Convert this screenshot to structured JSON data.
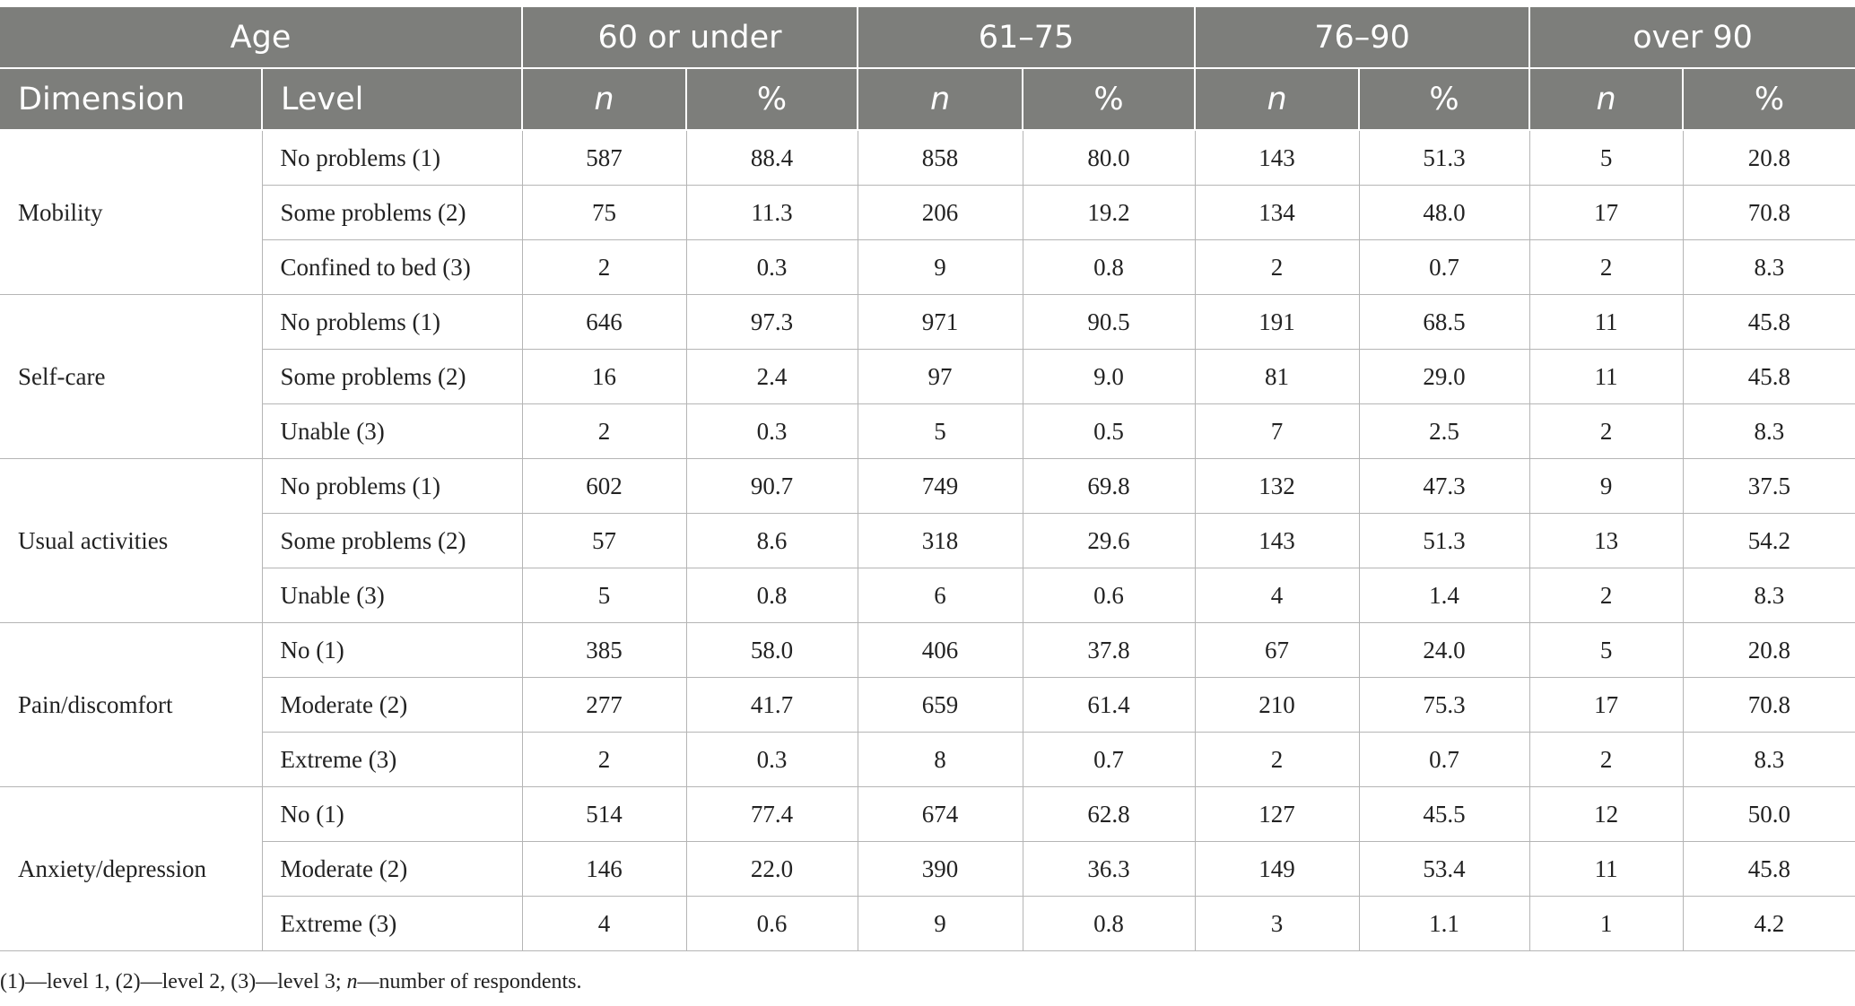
{
  "header": {
    "age_label": "Age",
    "groups": [
      "60 or under",
      "61–75",
      "76–90",
      "over 90"
    ],
    "dimension_label": "Dimension",
    "level_label": "Level",
    "n_label": "n",
    "pct_label": "%"
  },
  "rows": [
    {
      "dimension": "Mobility",
      "levels": [
        {
          "level": "No problems (1)",
          "values": [
            "587",
            "88.4",
            "858",
            "80.0",
            "143",
            "51.3",
            "5",
            "20.8"
          ]
        },
        {
          "level": "Some problems (2)",
          "values": [
            "75",
            "11.3",
            "206",
            "19.2",
            "134",
            "48.0",
            "17",
            "70.8"
          ]
        },
        {
          "level": "Confined to bed (3)",
          "values": [
            "2",
            "0.3",
            "9",
            "0.8",
            "2",
            "0.7",
            "2",
            "8.3"
          ]
        }
      ]
    },
    {
      "dimension": "Self-care",
      "levels": [
        {
          "level": "No problems (1)",
          "values": [
            "646",
            "97.3",
            "971",
            "90.5",
            "191",
            "68.5",
            "11",
            "45.8"
          ]
        },
        {
          "level": "Some problems (2)",
          "values": [
            "16",
            "2.4",
            "97",
            "9.0",
            "81",
            "29.0",
            "11",
            "45.8"
          ]
        },
        {
          "level": "Unable (3)",
          "values": [
            "2",
            "0.3",
            "5",
            "0.5",
            "7",
            "2.5",
            "2",
            "8.3"
          ]
        }
      ]
    },
    {
      "dimension": "Usual activities",
      "levels": [
        {
          "level": "No problems (1)",
          "values": [
            "602",
            "90.7",
            "749",
            "69.8",
            "132",
            "47.3",
            "9",
            "37.5"
          ]
        },
        {
          "level": "Some problems (2)",
          "values": [
            "57",
            "8.6",
            "318",
            "29.6",
            "143",
            "51.3",
            "13",
            "54.2"
          ]
        },
        {
          "level": "Unable (3)",
          "values": [
            "5",
            "0.8",
            "6",
            "0.6",
            "4",
            "1.4",
            "2",
            "8.3"
          ]
        }
      ]
    },
    {
      "dimension": "Pain/discomfort",
      "levels": [
        {
          "level": "No (1)",
          "values": [
            "385",
            "58.0",
            "406",
            "37.8",
            "67",
            "24.0",
            "5",
            "20.8"
          ]
        },
        {
          "level": "Moderate (2)",
          "values": [
            "277",
            "41.7",
            "659",
            "61.4",
            "210",
            "75.3",
            "17",
            "70.8"
          ]
        },
        {
          "level": "Extreme (3)",
          "values": [
            "2",
            "0.3",
            "8",
            "0.7",
            "2",
            "0.7",
            "2",
            "8.3"
          ]
        }
      ]
    },
    {
      "dimension": "Anxiety/depression",
      "levels": [
        {
          "level": "No (1)",
          "values": [
            "514",
            "77.4",
            "674",
            "62.8",
            "127",
            "45.5",
            "12",
            "50.0"
          ]
        },
        {
          "level": "Moderate (2)",
          "values": [
            "146",
            "22.0",
            "390",
            "36.3",
            "149",
            "53.4",
            "11",
            "45.8"
          ]
        },
        {
          "level": "Extreme (3)",
          "values": [
            "4",
            "0.6",
            "9",
            "0.8",
            "3",
            "1.1",
            "1",
            "4.2"
          ]
        }
      ]
    }
  ],
  "footnote": {
    "prefix": "(1)—level 1, (2)—level 2, (3)—level 3; ",
    "italic": "n",
    "suffix": "—number of respondents."
  }
}
